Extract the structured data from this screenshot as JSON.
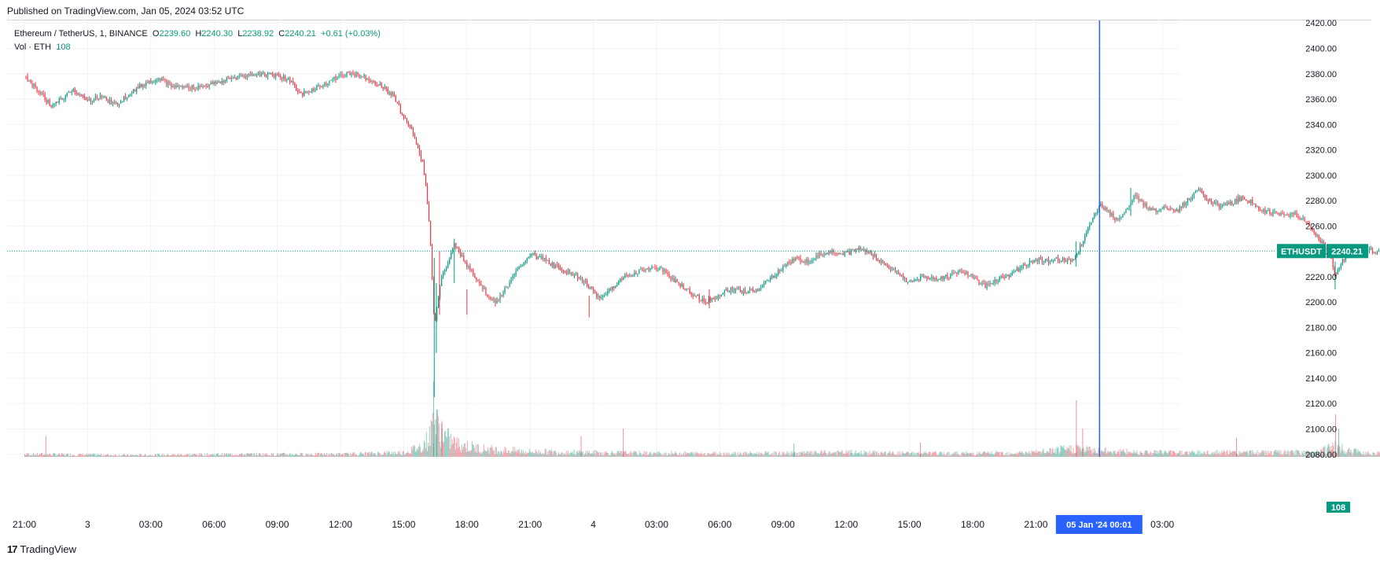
{
  "header": {
    "published": "Published on TradingView.com, Jan 05, 2024 03:52 UTC"
  },
  "legend": {
    "symbol": "Ethereum / TetherUS, 1, BINANCE",
    "o_label": "O",
    "o_value": "2239.60",
    "h_label": "H",
    "h_value": "2240.30",
    "l_label": "L",
    "l_value": "2238.92",
    "c_label": "C",
    "c_value": "2240.21",
    "change": "+0.61 (+0.03%)",
    "vol_label": "Vol · ETH",
    "vol_value": "108"
  },
  "footer": {
    "brand": "TradingView",
    "logo": "17"
  },
  "colors": {
    "up": "#089981",
    "down": "#f23645",
    "crosshair": "#2962ff",
    "grid": "#f0f3fa"
  },
  "chart_data": {
    "type": "candlestick",
    "symbol": "ETHUSDT",
    "last_price_label": "2240.21",
    "last_price": 2240.21,
    "volume_label": "108",
    "ylim": [
      2078,
      2422
    ],
    "y_ticks": [
      2420,
      2400,
      2380,
      2360,
      2340,
      2320,
      2300,
      2280,
      2260,
      2240,
      2220,
      2200,
      2180,
      2160,
      2140,
      2120,
      2100,
      2080
    ],
    "x_ticks": [
      "21:00",
      "3",
      "03:00",
      "06:00",
      "09:00",
      "12:00",
      "15:00",
      "18:00",
      "21:00",
      "4",
      "03:00",
      "06:00",
      "09:00",
      "12:00",
      "15:00",
      "18:00",
      "21:00",
      "05 Jan '24  00:01",
      "03:00"
    ],
    "x_tick_hours": [
      0,
      3,
      6,
      9,
      12,
      15,
      18,
      21,
      24,
      27,
      30,
      33,
      36,
      39,
      42,
      45,
      48,
      51,
      54
    ],
    "crosshair_hour": 51.02,
    "price_path": [
      [
        0,
        2378
      ],
      [
        0.8,
        2364
      ],
      [
        1.3,
        2354
      ],
      [
        1.8,
        2360
      ],
      [
        2.3,
        2368
      ],
      [
        3.0,
        2358
      ],
      [
        3.6,
        2363
      ],
      [
        4.3,
        2355
      ],
      [
        5.0,
        2365
      ],
      [
        5.8,
        2373
      ],
      [
        6.4,
        2377
      ],
      [
        7.0,
        2370
      ],
      [
        8.0,
        2369
      ],
      [
        9.0,
        2372
      ],
      [
        10.0,
        2377
      ],
      [
        11.0,
        2380
      ],
      [
        12.0,
        2379
      ],
      [
        12.7,
        2374
      ],
      [
        13.1,
        2363
      ],
      [
        14.0,
        2370
      ],
      [
        14.8,
        2377
      ],
      [
        15.5,
        2381
      ],
      [
        16.2,
        2377
      ],
      [
        16.8,
        2372
      ],
      [
        17.5,
        2363
      ],
      [
        18.0,
        2346
      ],
      [
        18.5,
        2332
      ],
      [
        18.9,
        2310
      ],
      [
        19.1,
        2285
      ],
      [
        19.3,
        2240
      ],
      [
        19.45,
        2180
      ],
      [
        19.6,
        2200
      ],
      [
        19.8,
        2220
      ],
      [
        20.1,
        2230
      ],
      [
        20.4,
        2245
      ],
      [
        20.8,
        2235
      ],
      [
        21.2,
        2225
      ],
      [
        21.6,
        2215
      ],
      [
        22.0,
        2205
      ],
      [
        22.4,
        2200
      ],
      [
        22.8,
        2210
      ],
      [
        23.4,
        2225
      ],
      [
        24.0,
        2238
      ],
      [
        24.6,
        2234
      ],
      [
        25.2,
        2228
      ],
      [
        25.8,
        2224
      ],
      [
        26.3,
        2220
      ],
      [
        26.8,
        2212
      ],
      [
        27.3,
        2202
      ],
      [
        27.9,
        2212
      ],
      [
        28.5,
        2220
      ],
      [
        29.1,
        2224
      ],
      [
        29.7,
        2227
      ],
      [
        30.3,
        2225
      ],
      [
        31.0,
        2215
      ],
      [
        31.6,
        2208
      ],
      [
        32.3,
        2200
      ],
      [
        32.9,
        2205
      ],
      [
        33.5,
        2210
      ],
      [
        34.2,
        2208
      ],
      [
        34.8,
        2210
      ],
      [
        35.4,
        2218
      ],
      [
        36.0,
        2228
      ],
      [
        36.6,
        2234
      ],
      [
        37.2,
        2232
      ],
      [
        37.8,
        2238
      ],
      [
        38.4,
        2240
      ],
      [
        39.0,
        2238
      ],
      [
        39.6,
        2242
      ],
      [
        40.2,
        2238
      ],
      [
        40.8,
        2230
      ],
      [
        41.4,
        2223
      ],
      [
        42.0,
        2215
      ],
      [
        42.6,
        2220
      ],
      [
        43.2,
        2218
      ],
      [
        43.8,
        2220
      ],
      [
        44.4,
        2225
      ],
      [
        45.0,
        2220
      ],
      [
        45.6,
        2212
      ],
      [
        46.2,
        2218
      ],
      [
        46.8,
        2222
      ],
      [
        47.4,
        2228
      ],
      [
        48.0,
        2234
      ],
      [
        48.5,
        2232
      ],
      [
        49.0,
        2235
      ],
      [
        49.5,
        2232
      ],
      [
        49.9,
        2235
      ],
      [
        50.2,
        2248
      ],
      [
        50.6,
        2262
      ],
      [
        51.0,
        2277
      ],
      [
        51.4,
        2272
      ],
      [
        51.8,
        2265
      ],
      [
        52.2,
        2270
      ],
      [
        52.7,
        2283
      ],
      [
        53.2,
        2276
      ],
      [
        53.7,
        2272
      ],
      [
        54.2,
        2276
      ],
      [
        54.7,
        2272
      ],
      [
        55.2,
        2280
      ],
      [
        55.7,
        2288
      ],
      [
        56.2,
        2280
      ],
      [
        56.8,
        2275
      ],
      [
        57.3,
        2278
      ],
      [
        57.8,
        2283
      ],
      [
        58.3,
        2278
      ],
      [
        58.8,
        2272
      ],
      [
        59.3,
        2270
      ],
      [
        59.8,
        2268
      ],
      [
        60.3,
        2270
      ],
      [
        60.8,
        2263
      ],
      [
        61.2,
        2256
      ],
      [
        61.6,
        2246
      ],
      [
        62.0,
        2238
      ],
      [
        62.2,
        2218
      ],
      [
        62.4,
        2228
      ],
      [
        62.7,
        2236
      ],
      [
        63.1,
        2240
      ],
      [
        63.6,
        2242
      ],
      [
        64.1,
        2240
      ],
      [
        64.6,
        2240.21
      ]
    ],
    "spikes": [
      [
        19.45,
        2125,
        2235
      ],
      [
        19.55,
        2160,
        2215
      ],
      [
        19.7,
        2190,
        2240
      ],
      [
        21.0,
        2190,
        2210
      ],
      [
        20.4,
        2215,
        2250
      ],
      [
        26.8,
        2188,
        2205
      ],
      [
        32.5,
        2195,
        2210
      ],
      [
        49.9,
        2228,
        2248
      ],
      [
        52.5,
        2268,
        2290
      ],
      [
        62.2,
        2210,
        2232
      ]
    ],
    "volume_profile": [
      [
        0,
        3
      ],
      [
        5,
        2
      ],
      [
        10,
        3
      ],
      [
        15,
        3
      ],
      [
        18,
        5
      ],
      [
        18.8,
        12
      ],
      [
        19.2,
        22
      ],
      [
        19.4,
        45
      ],
      [
        19.6,
        35
      ],
      [
        20.0,
        22
      ],
      [
        20.5,
        15
      ],
      [
        21.5,
        10
      ],
      [
        22.5,
        8
      ],
      [
        24,
        6
      ],
      [
        27,
        5
      ],
      [
        30,
        4
      ],
      [
        33,
        4
      ],
      [
        36,
        4
      ],
      [
        39,
        5
      ],
      [
        42,
        4
      ],
      [
        45,
        4
      ],
      [
        48,
        5
      ],
      [
        49.9,
        10
      ],
      [
        50.5,
        8
      ],
      [
        52,
        6
      ],
      [
        55,
        5
      ],
      [
        58,
        5
      ],
      [
        61,
        5
      ],
      [
        62.2,
        12
      ],
      [
        62.8,
        7
      ],
      [
        64.6,
        3
      ]
    ],
    "volume_spikes": [
      [
        19.4,
        80
      ],
      [
        19.55,
        50
      ],
      [
        19.8,
        38
      ],
      [
        1.0,
        22
      ],
      [
        26.4,
        22
      ],
      [
        28.4,
        30
      ],
      [
        49.9,
        60
      ],
      [
        50.2,
        30
      ],
      [
        57.5,
        20
      ],
      [
        62.2,
        45
      ],
      [
        62.35,
        30
      ],
      [
        42.5,
        15
      ],
      [
        36.5,
        14
      ]
    ],
    "volume_max": 100
  }
}
